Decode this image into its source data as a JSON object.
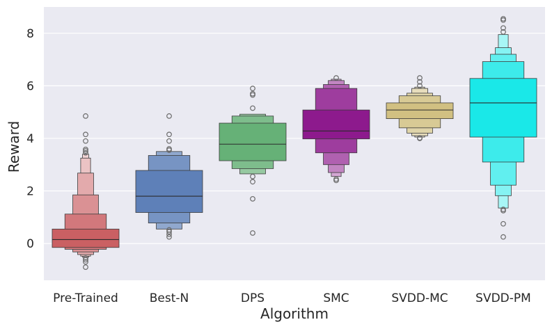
{
  "chart_data": {
    "type": "boxenplot",
    "title": "",
    "xlabel": "Algorithm",
    "ylabel": "Reward",
    "ylim": [
      -1.4,
      9.0
    ],
    "yticks": [
      0,
      2,
      4,
      6,
      8
    ],
    "grid": true,
    "background": "#eaeaf2",
    "categories": [
      "Pre-Trained",
      "Best-N",
      "DPS",
      "SMC",
      "SVDD-MC",
      "SVDD-PM"
    ],
    "series": [
      {
        "name": "Pre-Trained",
        "color": "#c44e52",
        "median": 0.15,
        "boxes": [
          [
            -0.15,
            0.55
          ],
          [
            -0.22,
            1.12
          ],
          [
            -0.32,
            1.85
          ],
          [
            -0.42,
            2.68
          ],
          [
            -0.48,
            3.25
          ],
          [
            -0.52,
            3.4
          ]
        ],
        "outliers": [
          -0.9,
          -0.7,
          -0.62,
          -0.55,
          3.45,
          3.52,
          3.58,
          3.9,
          4.15,
          4.85
        ]
      },
      {
        "name": "Best-N",
        "color": "#4c72b0",
        "median": 1.8,
        "boxes": [
          [
            1.18,
            2.78
          ],
          [
            0.78,
            3.35
          ],
          [
            0.55,
            3.5
          ]
        ],
        "outliers": [
          0.25,
          0.35,
          0.45,
          0.52,
          3.55,
          3.6,
          3.9,
          4.15,
          4.85
        ]
      },
      {
        "name": "DPS",
        "color": "#55a868",
        "median": 3.78,
        "boxes": [
          [
            3.15,
            4.58
          ],
          [
            2.85,
            4.85
          ],
          [
            2.65,
            4.92
          ]
        ],
        "outliers": [
          0.4,
          1.7,
          2.35,
          2.55,
          5.15,
          5.65,
          5.7,
          5.9
        ]
      },
      {
        "name": "SMC",
        "color": "#800080",
        "median": 4.28,
        "boxes": [
          [
            3.98,
            5.08
          ],
          [
            3.45,
            5.9
          ],
          [
            3.0,
            6.05
          ],
          [
            2.7,
            6.2
          ],
          [
            2.55,
            6.25
          ]
        ],
        "outliers": [
          2.4,
          2.45,
          6.3
        ]
      },
      {
        "name": "SVDD-MC",
        "color": "#ccb974",
        "median": 5.08,
        "boxes": [
          [
            4.75,
            5.35
          ],
          [
            4.4,
            5.62
          ],
          [
            4.2,
            5.72
          ],
          [
            4.1,
            5.9
          ],
          [
            4.05,
            5.95
          ]
        ],
        "outliers": [
          4.0,
          4.02,
          6.0,
          6.15,
          6.3
        ]
      },
      {
        "name": "SVDD-PM",
        "color": "#00e5e5",
        "median": 5.35,
        "boxes": [
          [
            4.05,
            6.28
          ],
          [
            3.1,
            6.92
          ],
          [
            2.22,
            7.2
          ],
          [
            1.82,
            7.45
          ],
          [
            1.35,
            7.95
          ]
        ],
        "outliers": [
          0.25,
          0.75,
          1.25,
          1.3,
          8.05,
          8.2,
          8.5,
          8.55
        ]
      }
    ]
  }
}
